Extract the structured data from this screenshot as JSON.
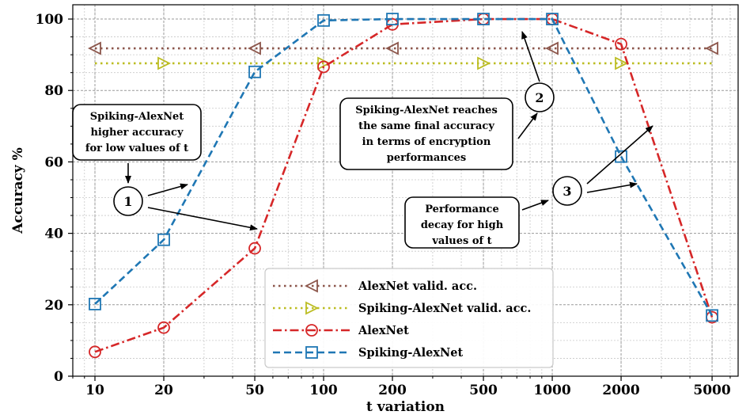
{
  "chart_data": {
    "type": "line",
    "xlabel": "t variation",
    "ylabel": "Accuracy %",
    "xscale": "log",
    "x_ticks": [
      "10",
      "20",
      "50",
      "100",
      "200",
      "500",
      "1000",
      "2000",
      "5000"
    ],
    "y_ticks": [
      "0",
      "20",
      "40",
      "60",
      "80",
      "100"
    ],
    "ylim": [
      0,
      104
    ],
    "xlim": [
      8,
      6500
    ],
    "grid": true,
    "legend_position": "bottom-center",
    "series": [
      {
        "name": "AlexNet valid. acc.",
        "color": "#8c564b",
        "style": "dotted",
        "marker": "triangle-left",
        "x": [
          10,
          50,
          200,
          1000,
          5000
        ],
        "y": [
          91.8,
          91.8,
          91.8,
          91.8,
          91.8
        ]
      },
      {
        "name": "Spiking-AlexNet valid. acc.",
        "color": "#bcbd22",
        "style": "dotted",
        "marker": "triangle-right",
        "x": [
          20,
          100,
          500,
          2000
        ],
        "y": [
          87.6,
          87.6,
          87.6,
          87.6
        ]
      },
      {
        "name": "AlexNet",
        "color": "#d62728",
        "style": "dashdot",
        "marker": "circle",
        "x": [
          10,
          20,
          50,
          100,
          200,
          500,
          1000,
          2000,
          5000
        ],
        "y": [
          6.8,
          13.6,
          35.8,
          86.6,
          98.5,
          100,
          100,
          93,
          16.5
        ]
      },
      {
        "name": "Spiking-AlexNet",
        "color": "#1f77b4",
        "style": "dashed",
        "marker": "square",
        "x": [
          10,
          20,
          50,
          100,
          200,
          500,
          1000,
          2000,
          5000
        ],
        "y": [
          20.2,
          38.2,
          85.2,
          99.6,
          100,
          100,
          100,
          61.5,
          17.0
        ]
      }
    ],
    "annotations": [
      {
        "number": "1",
        "lines": [
          "Spiking-AlexNet",
          "higher accuracy",
          "for low values of t"
        ]
      },
      {
        "number": "2",
        "lines": [
          "Spiking-AlexNet reaches",
          "the same final  accuracy",
          "in terms of encryption",
          "performances"
        ]
      },
      {
        "number": "3",
        "lines": [
          "Performance",
          "decay for high",
          "values of t"
        ]
      }
    ]
  }
}
